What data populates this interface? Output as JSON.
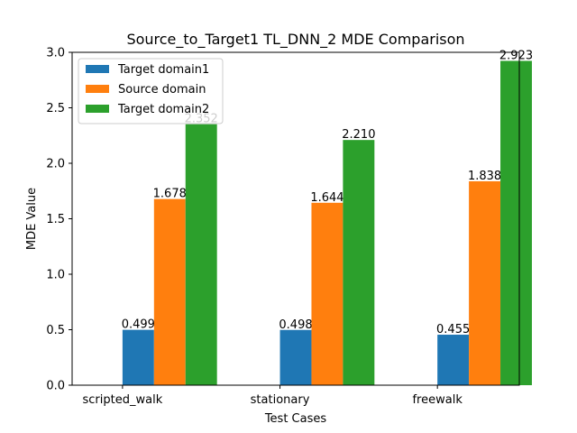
{
  "chart_data": {
    "type": "bar",
    "title": "Source_to_Target1 TL_DNN_2 MDE Comparison",
    "xlabel": "Test Cases",
    "ylabel": "MDE Value",
    "categories": [
      "scripted_walk",
      "stationary",
      "freewalk"
    ],
    "series": [
      {
        "name": "Target domain1",
        "color": "#1f77b4",
        "values": [
          0.499,
          0.498,
          0.455
        ],
        "labels": [
          "0.499",
          "0.498",
          "0.455"
        ]
      },
      {
        "name": "Source domain",
        "color": "#ff7f0e",
        "values": [
          1.678,
          1.644,
          1.838
        ],
        "labels": [
          "1.678",
          "1.644",
          "1.838"
        ]
      },
      {
        "name": "Target domain2",
        "color": "#2ca02c",
        "values": [
          2.352,
          2.21,
          2.923
        ],
        "labels": [
          "2.352",
          "2.210",
          "2.923"
        ]
      }
    ],
    "ylim": [
      0,
      3.0
    ],
    "yticks": [
      {
        "value": 0.0,
        "label": "0.0"
      },
      {
        "value": 0.5,
        "label": "0.5"
      },
      {
        "value": 1.0,
        "label": "1.0"
      },
      {
        "value": 1.5,
        "label": "1.5"
      },
      {
        "value": 2.0,
        "label": "2.0"
      },
      {
        "value": 2.5,
        "label": "2.5"
      },
      {
        "value": 3.0,
        "label": "3.0"
      }
    ],
    "grid": false,
    "legend_position": "top-left"
  }
}
